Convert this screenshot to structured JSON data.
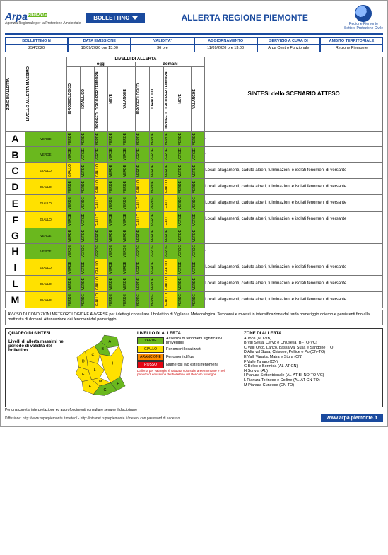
{
  "colors": {
    "verde": "#6ab81e",
    "giallo": "#ffe100",
    "arancione": "#ff8c00",
    "rosso": "#e30613",
    "blue": "#1a4a9e"
  },
  "header": {
    "logo_arpa": "Arpa",
    "logo_arpa_sub": "Agenzia Regionale\nper la Protezione Ambientale",
    "logo_arpa_tag": "PIEMONTE",
    "bollettino_tag": "BOLLETTINO",
    "main_title": "ALLERTA REGIONE PIEMONTE",
    "pc_line1": "Regione Piemonte",
    "pc_line2": "Settore Protezione Civile"
  },
  "info": [
    {
      "h": "BOLLETTINO N",
      "v": "254/2020"
    },
    {
      "h": "DATA EMISSIONE",
      "v": "10/09/2020 ore 13:00"
    },
    {
      "h": "VALIDITA'",
      "v": "36 ore"
    },
    {
      "h": "AGGIORNAMENTO",
      "v": "11/09/2020 ore 13:00"
    },
    {
      "h": "SERVIZIO A CURA DI",
      "v": "Arpa Centro Funzionale"
    },
    {
      "h": "AMBITO TERRITORIALE",
      "v": "Regione Piemonte"
    }
  ],
  "table_head": {
    "livelli": "LIVELLI DI ALLERTA",
    "oggi": "oggi",
    "domani": "domani",
    "sintesi": "SINTESI dello SCENARIO ATTESO",
    "zone": "ZONE DI ALLERTA",
    "max": "LIVELLO ALLERTA MASSIMO",
    "cols": [
      "IDROGEOLOGICO",
      "IDRAULICO",
      "IDROGEOLOGICO PER TEMPORALI",
      "NEVE",
      "VALANGHE"
    ]
  },
  "level_labels": {
    "VERDE": "VERDE",
    "GIALLO": "GIALLO"
  },
  "zones": [
    {
      "l": "A",
      "max": "VERDE",
      "oggi": [
        "VERDE",
        "VERDE",
        "VERDE",
        "VERDE",
        "VERDE"
      ],
      "domani": [
        "VERDE",
        "VERDE",
        "VERDE",
        "VERDE",
        "VERDE"
      ],
      "txt": "-"
    },
    {
      "l": "B",
      "max": "VERDE",
      "oggi": [
        "VERDE",
        "VERDE",
        "VERDE",
        "VERDE",
        "VERDE"
      ],
      "domani": [
        "VERDE",
        "VERDE",
        "VERDE",
        "VERDE",
        "VERDE"
      ],
      "txt": "-"
    },
    {
      "l": "C",
      "max": "GIALLO",
      "oggi": [
        "GIALLO",
        "VERDE",
        "GIALLO",
        "VERDE",
        "VERDE"
      ],
      "domani": [
        "VERDE",
        "VERDE",
        "VERDE",
        "VERDE",
        "VERDE"
      ],
      "txt": "Locali allagamenti, caduta alberi, fulminazioni e isolati fenomeni di versante"
    },
    {
      "l": "D",
      "max": "GIALLO",
      "oggi": [
        "VERDE",
        "VERDE",
        "GIALLO",
        "VERDE",
        "VERDE"
      ],
      "domani": [
        "GIALLO",
        "VERDE",
        "GIALLO",
        "VERDE",
        "VERDE"
      ],
      "txt": "Locali allagamenti, caduta alberi, fulminazioni e isolati fenomeni di versante"
    },
    {
      "l": "E",
      "max": "GIALLO",
      "oggi": [
        "VERDE",
        "VERDE",
        "GIALLO",
        "VERDE",
        "VERDE"
      ],
      "domani": [
        "GIALLO",
        "VERDE",
        "GIALLO",
        "VERDE",
        "VERDE"
      ],
      "txt": "Locali allagamenti, caduta alberi, fulminazioni e isolati fenomeni di versante"
    },
    {
      "l": "F",
      "max": "GIALLO",
      "oggi": [
        "VERDE",
        "VERDE",
        "GIALLO",
        "VERDE",
        "VERDE"
      ],
      "domani": [
        "GIALLO",
        "VERDE",
        "GIALLO",
        "VERDE",
        "VERDE"
      ],
      "txt": "Locali allagamenti, caduta alberi, fulminazioni e isolati fenomeni di versante"
    },
    {
      "l": "G",
      "max": "VERDE",
      "oggi": [
        "VERDE",
        "VERDE",
        "VERDE",
        "VERDE",
        "VERDE"
      ],
      "domani": [
        "VERDE",
        "VERDE",
        "VERDE",
        "VERDE",
        "VERDE"
      ],
      "txt": "-"
    },
    {
      "l": "H",
      "max": "VERDE",
      "oggi": [
        "VERDE",
        "VERDE",
        "VERDE",
        "VERDE",
        "VERDE"
      ],
      "domani": [
        "VERDE",
        "VERDE",
        "VERDE",
        "VERDE",
        "VERDE"
      ],
      "txt": "-"
    },
    {
      "l": "I",
      "max": "GIALLO",
      "oggi": [
        "VERDE",
        "VERDE",
        "GIALLO",
        "VERDE",
        "VERDE"
      ],
      "domani": [
        "VERDE",
        "VERDE",
        "GIALLO",
        "VERDE",
        "VERDE"
      ],
      "txt": "Locali allagamenti, caduta alberi, fulminazioni e isolati fenomeni di versante"
    },
    {
      "l": "L",
      "max": "GIALLO",
      "oggi": [
        "VERDE",
        "VERDE",
        "GIALLO",
        "VERDE",
        "VERDE"
      ],
      "domani": [
        "VERDE",
        "VERDE",
        "GIALLO",
        "VERDE",
        "VERDE"
      ],
      "txt": "Locali allagamenti, caduta alberi, fulminazioni e isolati fenomeni di versante"
    },
    {
      "l": "M",
      "max": "GIALLO",
      "oggi": [
        "VERDE",
        "VERDE",
        "GIALLO",
        "VERDE",
        "VERDE"
      ],
      "domani": [
        "VERDE",
        "VERDE",
        "GIALLO",
        "VERDE",
        "VERDE"
      ],
      "txt": "Locali allagamenti, caduta alberi, fulminazioni e isolati fenomeni di versante"
    }
  ],
  "avviso": "AVVISO DI CONDIZIONI METEOROLOGICHE AVVERSE per i dettagli consultare il bollettino di Vigilanza Meteorologica. Temporali e rovesci in intensificazione dal tardo pomeriggio odierno e persistenti fino alla mattinata di domani. Attenuazione dei fenomeni dal pomeriggio.",
  "quadro": {
    "title": "QUADRO DI SINTESI",
    "caption": "Livelli di allerta massimi nel periodo di validità del bollettino",
    "map_colors": {
      "A": "#6ab81e",
      "B": "#6ab81e",
      "C": "#ffe100",
      "D": "#ffe100",
      "E": "#ffe100",
      "F": "#ffe100",
      "G": "#6ab81e",
      "H": "#6ab81e",
      "I": "#ffe100",
      "L": "#ffe100",
      "M": "#ffe100"
    },
    "legend_title": "LIVELLO DI ALLERTA",
    "legend": [
      {
        "c": "#6ab81e",
        "lab": "VERDE",
        "txt": "Assenza di fenomeni significativi prevedibili"
      },
      {
        "c": "#ffe100",
        "lab": "GIALLO",
        "txt": "Fenomeni localizzati"
      },
      {
        "c": "#ff8c00",
        "lab": "ARANCIONE",
        "txt": "Fenomeni diffusi"
      },
      {
        "c": "#e30613",
        "lab": "ROSSO",
        "txt": "Numerosi e/o estesi fenomeni"
      }
    ],
    "valanghe_note": "L'allerta per valanghe è valutata solo sulle aree montane e nel periodo di emissione del bollettino del Pericolo valanghe",
    "zones_title": "ZONE DI ALLERTA",
    "zones_list": [
      "A Toce (NO-VB)",
      "B Val Sesia, Cervo e Chiusella (BI-TO-VC)",
      "C Valli Orco, Lanzo, bassa val Susa e Sangone (TO)",
      "D Alta val Susa, Chisone, Pellice e Po (CN-TO)",
      "E Valli Varaita, Maira e Stura (CN)",
      "F Valle Tanaro (CN)",
      "G Belbo e Bormida (AL-AT-CN)",
      "H Scrivia (AL)",
      "I Pianura Settentrionale (AL-AT-BI-NO-TO-VC)",
      "L Pianura Torinese e Colline (AL-AT-CN-TO)",
      "M Pianura Cuneese (CN-TO)"
    ],
    "interp": "Per una corretta interpretazione ed approfondimenti consultare sempre il disciplinare"
  },
  "footer": {
    "diffusione": "Diffusione: http://www.ruparpiemonte.it/meteo/ - http://intranet.ruparpiemonte.it/meteo/ con password di accesso",
    "url": "www.arpa.piemonte.it"
  }
}
